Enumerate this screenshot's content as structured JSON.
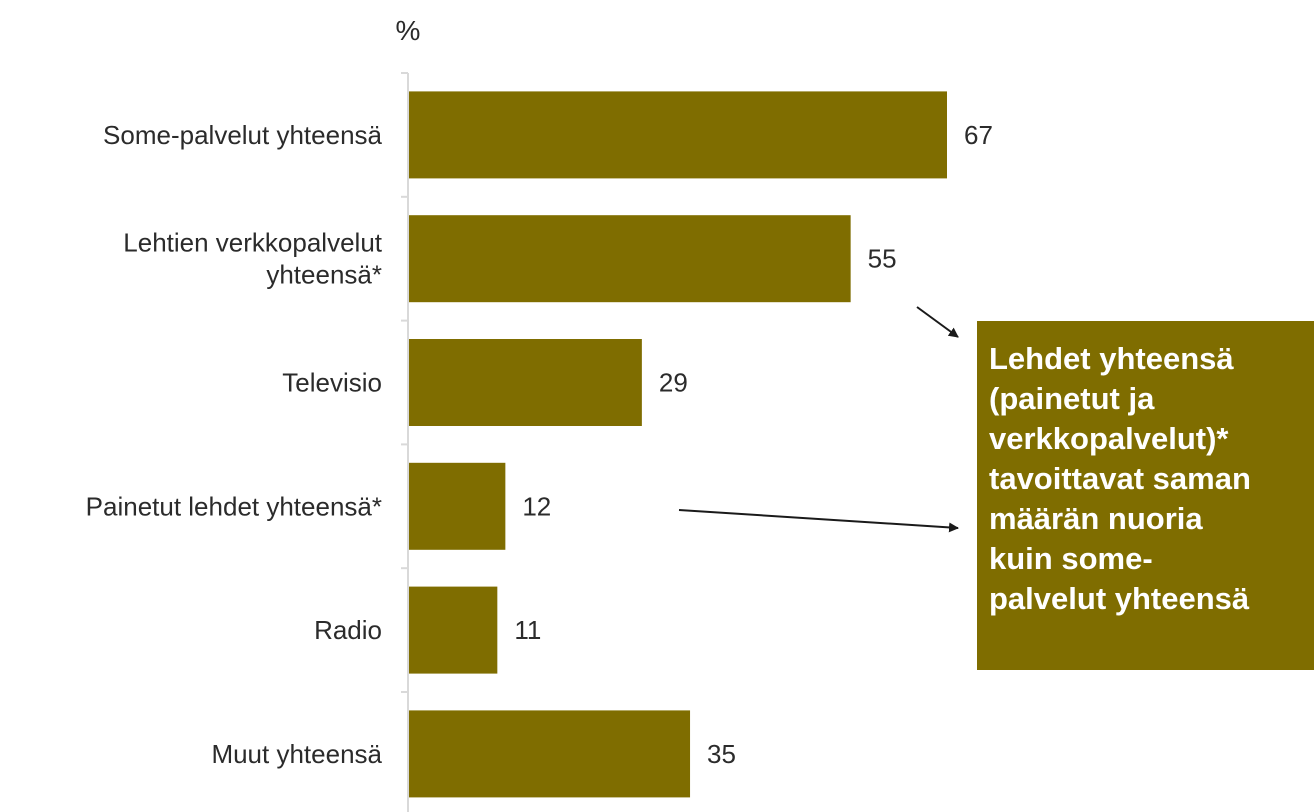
{
  "colors": {
    "bar": "#7f6d00",
    "axis": "#d9d9d9",
    "text": "#2b2b2b",
    "callout_bg": "#7f6d00",
    "callout_text": "#ffffff",
    "arrow": "#1a1a1a"
  },
  "chart_data": {
    "type": "bar",
    "orientation": "horizontal",
    "unit": "%",
    "categories": [
      [
        "Some-palvelut yhteensä"
      ],
      [
        "Lehtien verkkopalvelut",
        "yhteensä*"
      ],
      [
        "Televisio"
      ],
      [
        "Painetut lehdet yhteensä*"
      ],
      [
        "Radio"
      ],
      [
        "Muut yhteensä"
      ]
    ],
    "values": [
      67,
      55,
      29,
      12,
      11,
      35
    ],
    "xlim": [
      0,
      100
    ],
    "grid": false
  },
  "callout": {
    "lines": [
      "Lehdet yhteensä",
      "(painetut ja",
      "verkkopalvelut)*",
      "tavoittavat saman",
      "määrän nuoria",
      "kuin some-",
      "palvelut yhteensä"
    ]
  }
}
